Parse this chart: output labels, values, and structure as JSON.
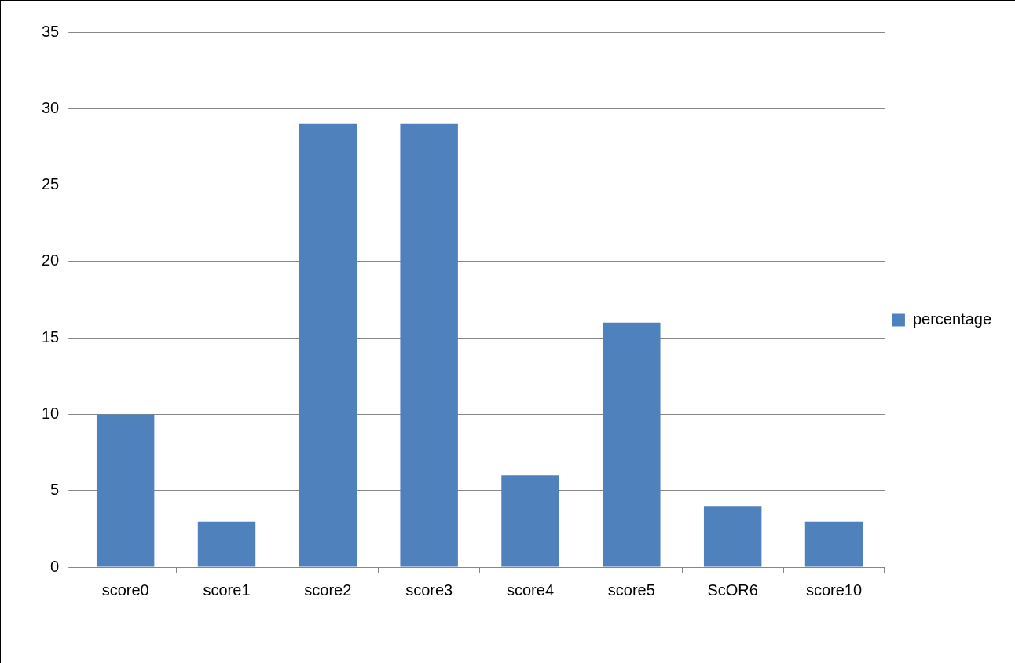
{
  "chart_data": {
    "type": "bar",
    "categories": [
      "score0",
      "score1",
      "score2",
      "score3",
      "score4",
      "score5",
      "ScOR6",
      "score10"
    ],
    "series": [
      {
        "name": "percentage",
        "color": "#4f81bd",
        "values": [
          10,
          3,
          29,
          29,
          6,
          16,
          4,
          3
        ]
      }
    ],
    "ylim": [
      0,
      35
    ],
    "yticks": [
      0,
      5,
      10,
      15,
      20,
      25,
      30,
      35
    ],
    "grid": "y",
    "legend": "right"
  }
}
